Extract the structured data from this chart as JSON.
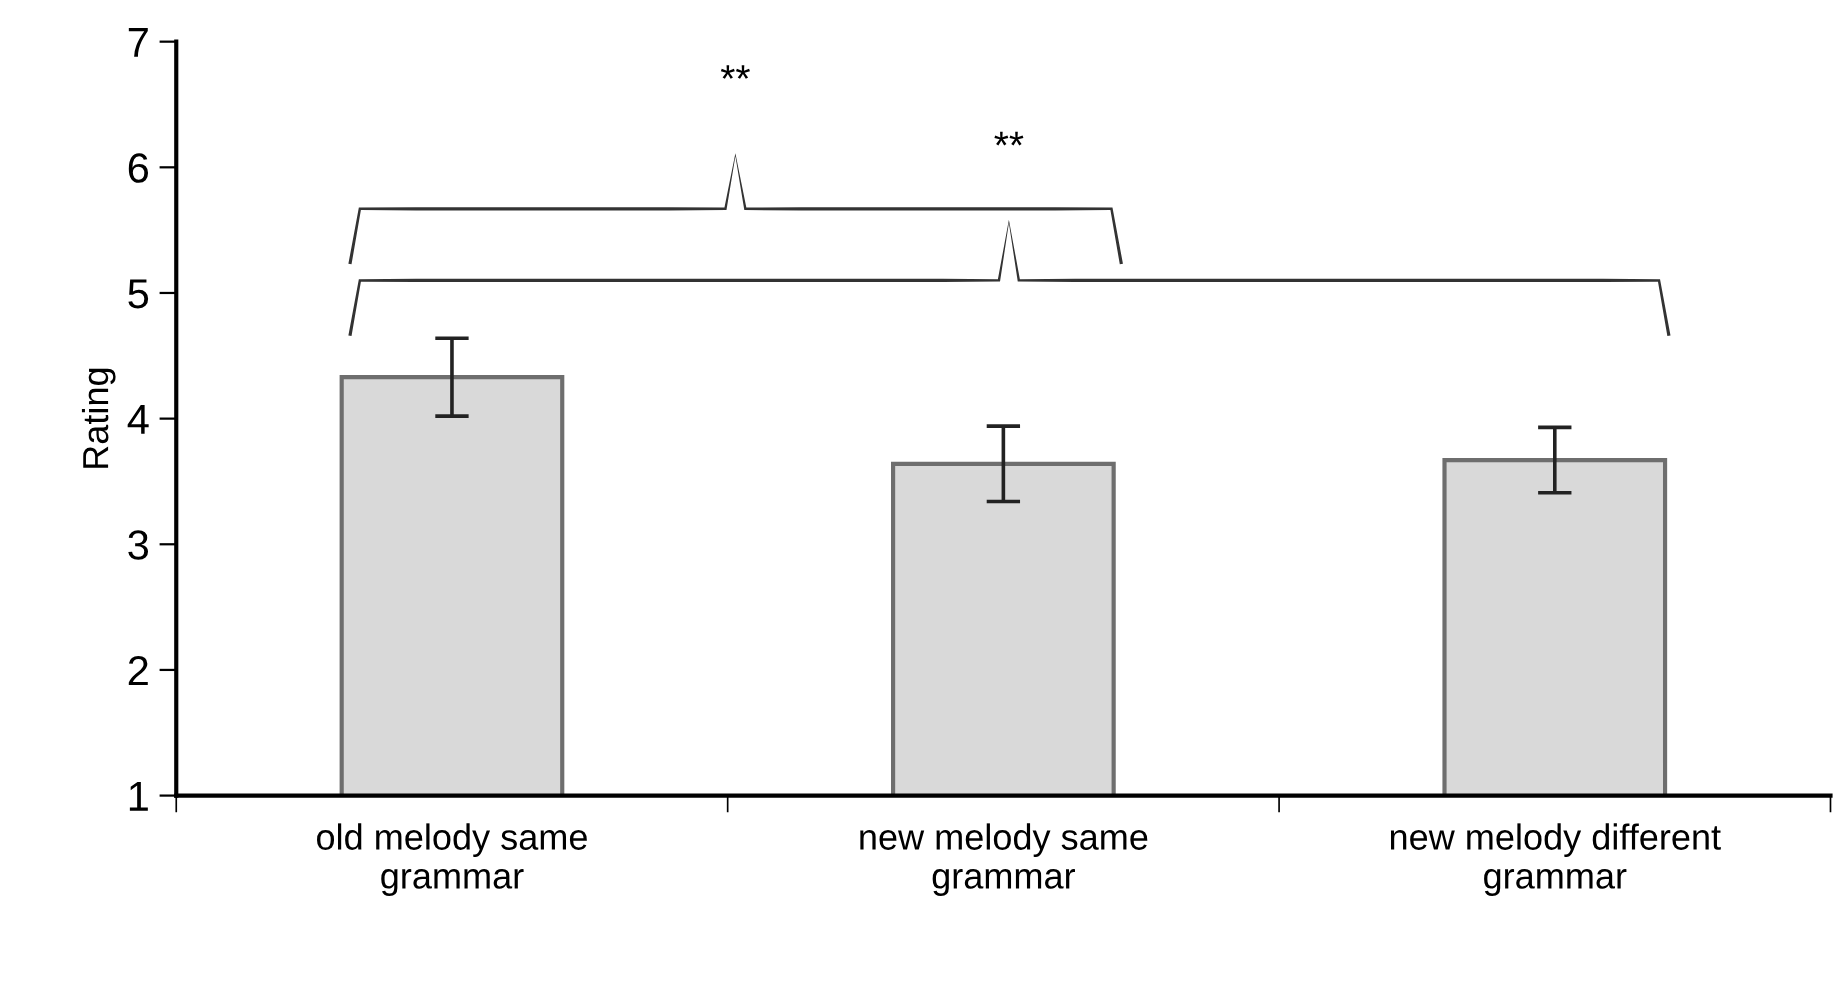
{
  "chart_data": {
    "type": "bar",
    "ylabel": "Rating",
    "categories": [
      "old melody same\ngrammar",
      "new melody same\ngrammar",
      "new melody different\ngrammar"
    ],
    "values": [
      4.33,
      3.64,
      3.67
    ],
    "errors": [
      0.31,
      0.3,
      0.26
    ],
    "color": "#d9d9d9",
    "ylim": [
      1,
      7
    ],
    "yticks": [
      1,
      2,
      3,
      4,
      5,
      6,
      7
    ],
    "grid": false,
    "annotations": [
      "**",
      "**"
    ]
  }
}
